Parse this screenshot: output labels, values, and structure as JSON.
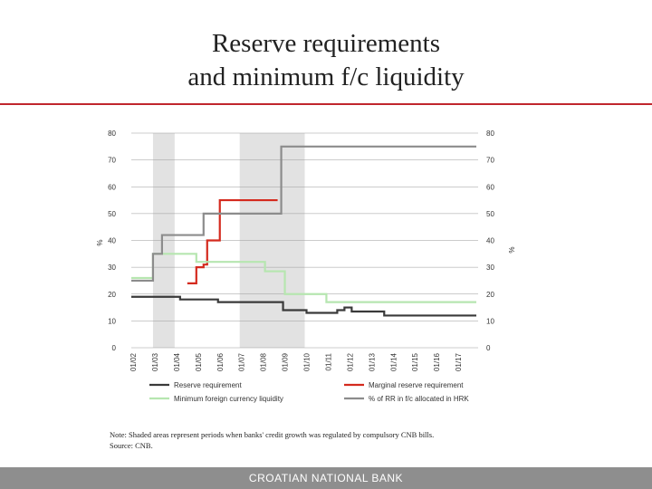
{
  "slide": {
    "title_line1": "Reserve requirements",
    "title_line2": "and minimum f/c liquidity",
    "note": "Note: Shaded areas represent periods when banks' credit growth was regulated by compulsory CNB bills.",
    "source": "Source: CNB.",
    "footer": "CROATIAN NATIONAL BANK"
  },
  "colors": {
    "accent_rule": "#c0262d",
    "reserve_requirement": "#3a3a3a",
    "marginal_reserve_requirement": "#d42a1e",
    "minimum_fc_liquidity": "#b6e6b0",
    "pct_rr_allocated_hrk": "#8c8c8c",
    "shade": "#e2e2e2",
    "footer_bar": "#8e8e8e"
  },
  "chart_data": {
    "type": "line",
    "ylabel_left": "%",
    "ylabel_right": "%",
    "ylim": [
      0,
      80
    ],
    "yticks": [
      0,
      10,
      20,
      30,
      40,
      50,
      60,
      70,
      80
    ],
    "xlim": [
      "2002-01",
      "2017-12"
    ],
    "xtick_labels": [
      "01/02",
      "01/03",
      "01/04",
      "01/05",
      "01/06",
      "01/07",
      "01/08",
      "01/09",
      "01/10",
      "01/11",
      "01/12",
      "01/13",
      "01/14",
      "01/15",
      "01/16",
      "01/17"
    ],
    "shaded_periods": [
      [
        "2003-01",
        "2004-01"
      ],
      [
        "2007-01",
        "2010-01"
      ]
    ],
    "legend_placement": "bottom",
    "series": [
      {
        "name": "Reserve requirement",
        "color_key": "reserve_requirement",
        "step": true,
        "points": [
          [
            "2002-01",
            19
          ],
          [
            "2004-04",
            18
          ],
          [
            "2006-01",
            17
          ],
          [
            "2009-01",
            14
          ],
          [
            "2010-02",
            13
          ],
          [
            "2011-07",
            14
          ],
          [
            "2011-11",
            15
          ],
          [
            "2012-03",
            13.5
          ],
          [
            "2013-09",
            12
          ],
          [
            "2017-12",
            12
          ]
        ]
      },
      {
        "name": "Marginal reserve requirement",
        "color_key": "marginal_reserve_requirement",
        "step": true,
        "points": [
          [
            "2004-08",
            24
          ],
          [
            "2005-01",
            30
          ],
          [
            "2005-05",
            31
          ],
          [
            "2005-07",
            40
          ],
          [
            "2006-02",
            55
          ],
          [
            "2008-10",
            55
          ]
        ]
      },
      {
        "name": "Minimum foreign currency liquidity",
        "color_key": "minimum_fc_liquidity",
        "step": true,
        "points": [
          [
            "2002-01",
            26
          ],
          [
            "2003-01",
            35
          ],
          [
            "2005-01",
            32
          ],
          [
            "2008-03",
            28.5
          ],
          [
            "2009-02",
            20
          ],
          [
            "2011-01",
            17
          ],
          [
            "2017-12",
            17
          ]
        ]
      },
      {
        "name": "% of RR in f/c allocated in HRK",
        "color_key": "pct_rr_allocated_hrk",
        "step": true,
        "points": [
          [
            "2002-01",
            25
          ],
          [
            "2003-01",
            35
          ],
          [
            "2003-06",
            42
          ],
          [
            "2005-05",
            50
          ],
          [
            "2008-12",
            75
          ],
          [
            "2017-12",
            75
          ]
        ]
      }
    ]
  }
}
